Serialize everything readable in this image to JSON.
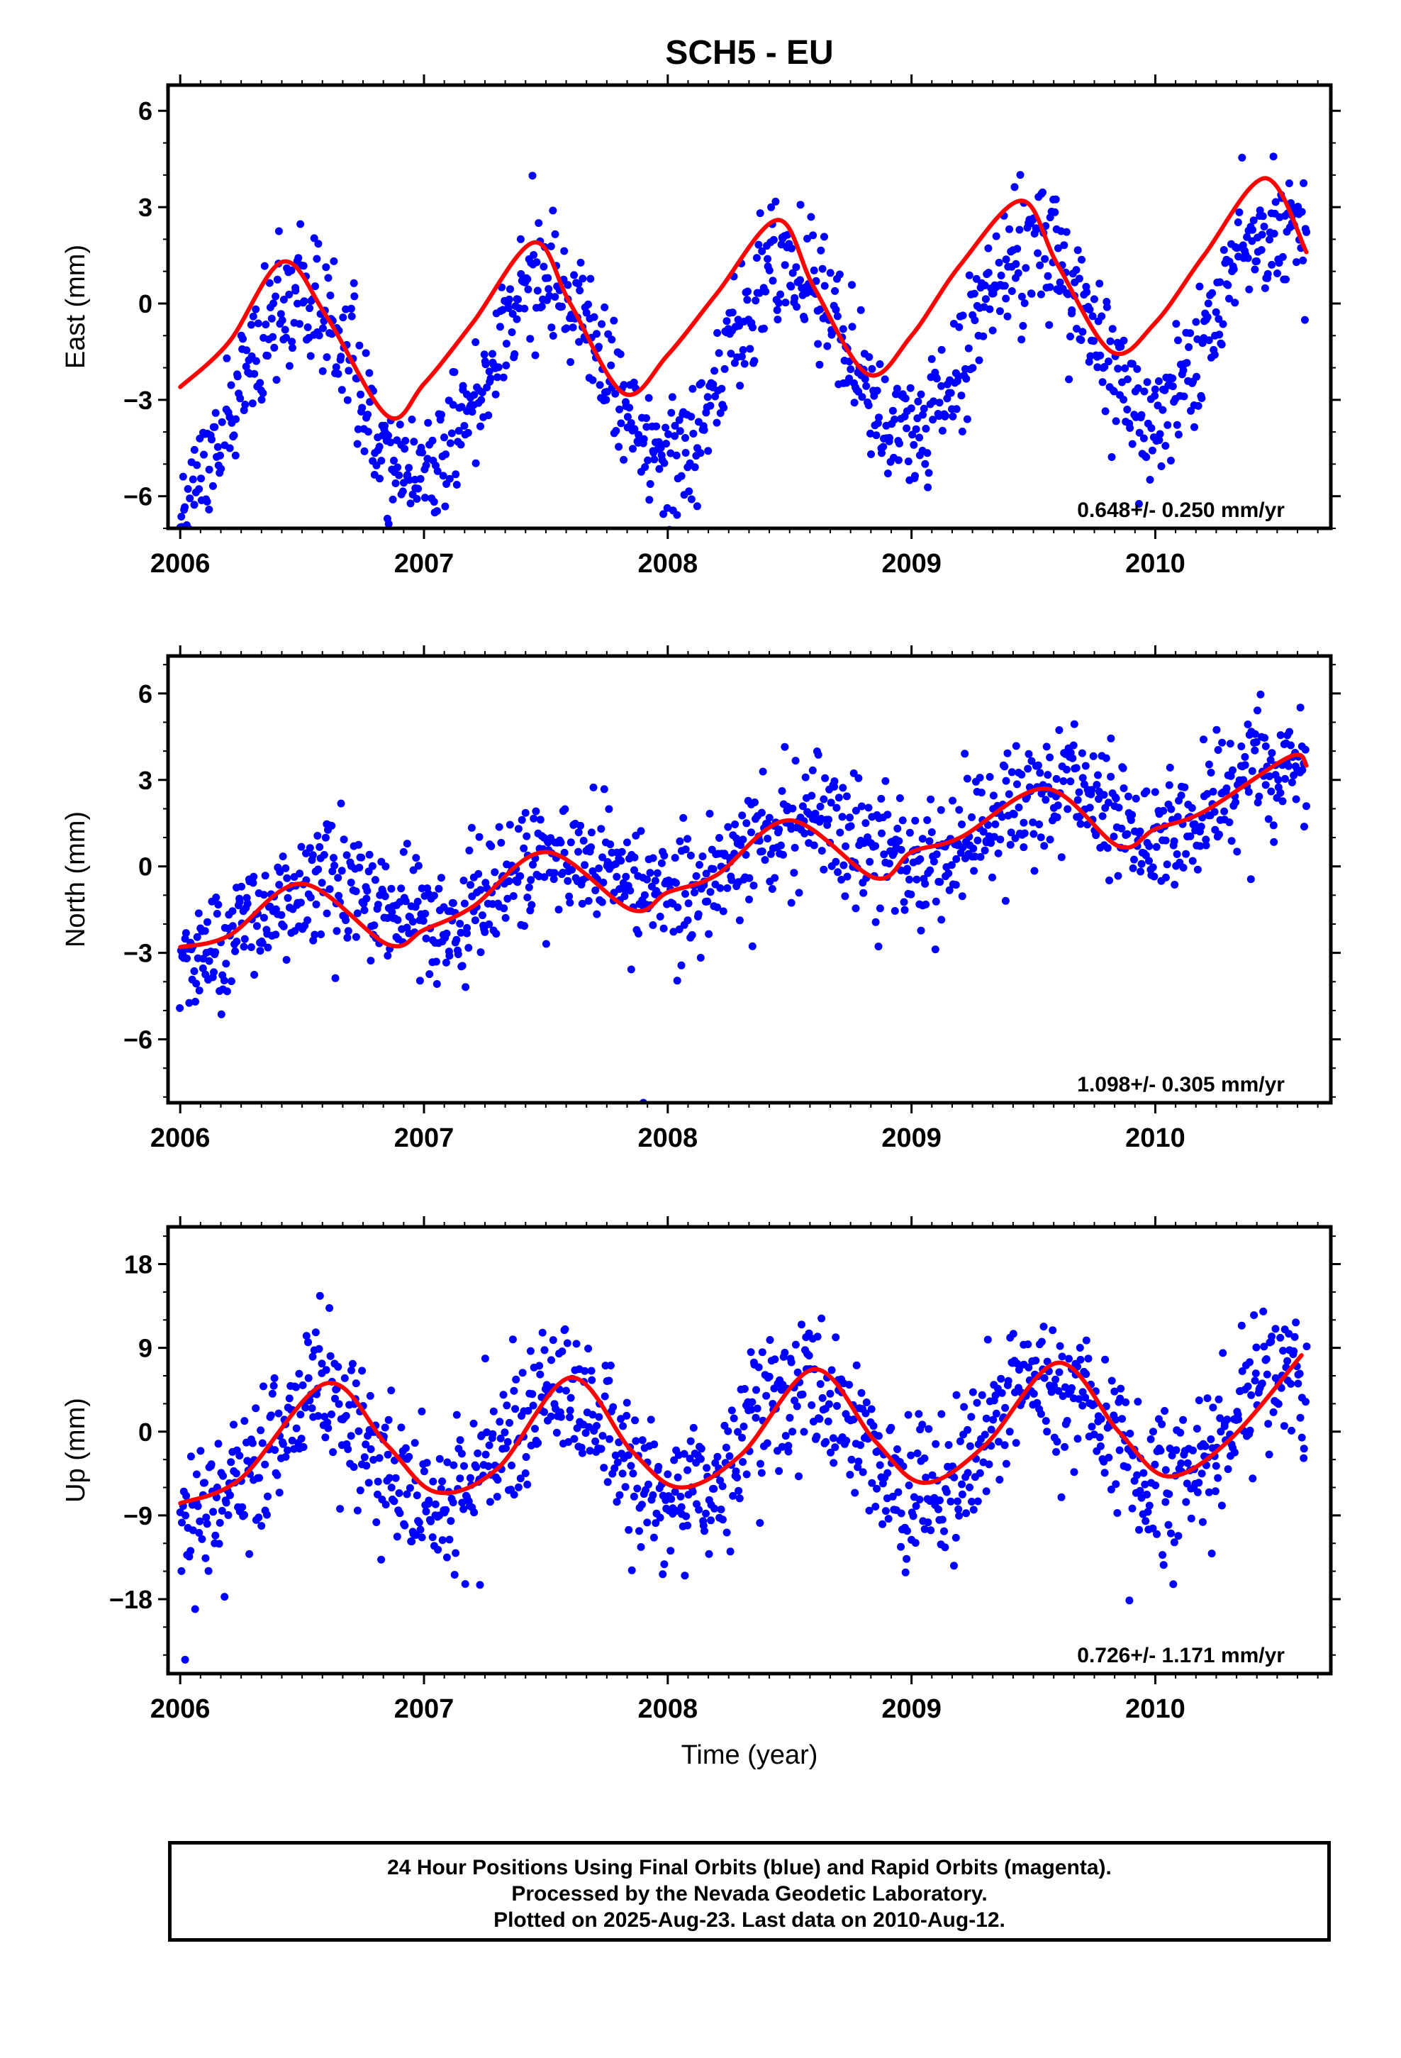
{
  "title": "SCH5 - EU",
  "xlabel": "Time (year)",
  "footer": {
    "line1": "24 Hour Positions Using Final Orbits (blue) and Rapid Orbits (magenta).",
    "line2": "Processed by the Nevada Geodetic Laboratory.",
    "line3": "Plotted on 2025-Aug-23. Last data on 2010-Aug-12."
  },
  "colors": {
    "final_orbits": "#0000ff",
    "fit": "#ff0000",
    "axes": "#000000"
  },
  "chart_data": [
    {
      "type": "scatter",
      "ylabel": "East (mm)",
      "rate": "0.648+/- 0.250 mm/yr",
      "xlim": [
        2005.95,
        2010.72
      ],
      "ylim": [
        -7,
        6.8
      ],
      "yticks": [
        -6,
        -3,
        0,
        3,
        6
      ],
      "yticklabels": [
        "−6",
        "−3",
        "0",
        "3",
        "6"
      ],
      "xticks": [
        2006,
        2007,
        2008,
        2009,
        2010
      ],
      "xticklabels": [
        "2006",
        "2007",
        "2008",
        "2009",
        "2010"
      ],
      "grid": false,
      "model": {
        "offset": -3.2,
        "trend": 0.648,
        "amp": 2.9,
        "phase": 1.5,
        "t0": 2006.0
      },
      "scatter": {
        "seed": 11,
        "sigma": 1.0,
        "start": 2006.0,
        "end": 2010.62,
        "extreme": [
          2006.85,
          -6.7
        ]
      },
      "fit_curve": {
        "x": [
          2006.0,
          2006.2,
          2006.42,
          2006.6,
          2006.85,
          2007.0,
          2007.2,
          2007.45,
          2007.6,
          2007.82,
          2008.0,
          2008.2,
          2008.45,
          2008.6,
          2008.82,
          2009.0,
          2009.2,
          2009.45,
          2009.6,
          2009.82,
          2010.0,
          2010.2,
          2010.45,
          2010.62
        ],
        "y": [
          -2.6,
          -1.2,
          1.3,
          -0.4,
          -3.5,
          -2.5,
          -0.6,
          1.9,
          0.0,
          -2.8,
          -1.6,
          0.3,
          2.6,
          0.5,
          -2.2,
          -1.0,
          1.2,
          3.2,
          1.2,
          -1.5,
          -0.6,
          1.5,
          3.9,
          1.6
        ]
      }
    },
    {
      "type": "scatter",
      "ylabel": "North (mm)",
      "rate": "1.098+/- 0.305 mm/yr",
      "xlim": [
        2005.95,
        2010.72
      ],
      "ylim": [
        -8.2,
        7.3
      ],
      "yticks": [
        -6,
        -3,
        0,
        3,
        6
      ],
      "yticklabels": [
        "−6",
        "−3",
        "0",
        "3",
        "6"
      ],
      "xticks": [
        2006,
        2007,
        2008,
        2009,
        2010
      ],
      "xticklabels": [
        "2006",
        "2007",
        "2008",
        "2009",
        "2010"
      ],
      "grid": false,
      "model": {
        "offset": -2.3,
        "trend": 1.098,
        "amp": 1.0,
        "phase": 1.8,
        "t0": 2006.0
      },
      "scatter": {
        "seed": 23,
        "sigma": 1.05,
        "start": 2006.0,
        "end": 2010.62,
        "extreme": [
          2007.9,
          -8.2
        ]
      },
      "fit_curve": {
        "x": [
          2006.0,
          2006.2,
          2006.5,
          2006.85,
          2007.0,
          2007.2,
          2007.5,
          2007.85,
          2008.0,
          2008.2,
          2008.5,
          2008.85,
          2009.0,
          2009.2,
          2009.55,
          2009.85,
          2010.0,
          2010.2,
          2010.55,
          2010.62
        ],
        "y": [
          -2.8,
          -2.4,
          -0.6,
          -2.7,
          -2.2,
          -1.4,
          0.5,
          -1.5,
          -0.9,
          -0.3,
          1.6,
          -0.4,
          0.5,
          1.0,
          2.7,
          0.7,
          1.3,
          1.9,
          3.8,
          3.5
        ]
      }
    },
    {
      "type": "scatter",
      "ylabel": "Up (mm)",
      "rate": "0.726+/- 1.171 mm/yr",
      "xlim": [
        2005.95,
        2010.72
      ],
      "ylim": [
        -26,
        22
      ],
      "yticks": [
        -18,
        -9,
        0,
        9,
        18
      ],
      "yticklabels": [
        "−18",
        "−9",
        "0",
        "9",
        "18"
      ],
      "xticks": [
        2006,
        2007,
        2008,
        2009,
        2010
      ],
      "xticklabels": [
        "2006",
        "2007",
        "2008",
        "2009",
        "2010"
      ],
      "grid": false,
      "model": {
        "offset": -3.0,
        "trend": 0.726,
        "amp": 6.3,
        "phase": 1.9,
        "t0": 2006.0
      },
      "scatter": {
        "seed": 37,
        "sigma": 3.9,
        "start": 2006.0,
        "end": 2010.62,
        "extreme": [
          2006.02,
          -24.5
        ]
      },
      "fit_curve": {
        "x": [
          2006.0,
          2006.25,
          2006.6,
          2006.85,
          2007.05,
          2007.3,
          2007.6,
          2007.85,
          2008.05,
          2008.3,
          2008.6,
          2008.85,
          2009.05,
          2009.3,
          2009.6,
          2009.85,
          2010.05,
          2010.3,
          2010.6
        ],
        "y": [
          -7.7,
          -5.0,
          5.2,
          -1.5,
          -6.5,
          -4.0,
          5.8,
          -2.0,
          -6.0,
          -2.5,
          6.7,
          -1.0,
          -5.5,
          -1.5,
          7.4,
          0.0,
          -4.8,
          -1.0,
          8.2
        ]
      }
    }
  ]
}
